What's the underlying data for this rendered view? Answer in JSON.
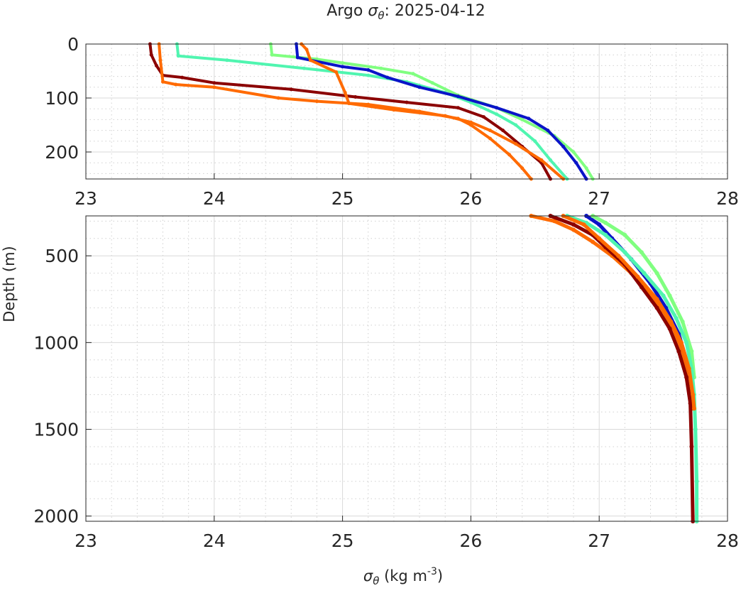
{
  "colors": {
    "dark_red": "#8b0000",
    "orange": "#ff6a00",
    "light_green": "#80ff80",
    "aqua_green": "#50f5b0",
    "blue": "#0a14c8",
    "axis": "#262626"
  },
  "chart_data": [
    {
      "type": "line",
      "title_prefix": "Argo",
      "title_symbol": "σ",
      "title_subscript": "θ",
      "title_suffix": ": 2025-04-12",
      "xlim": [
        23,
        28
      ],
      "ylim": [
        0,
        250
      ],
      "y_reversed": true,
      "grid": true,
      "minor_grid": true,
      "x_ticks": [
        "23",
        "24",
        "25",
        "26",
        "27",
        "28"
      ],
      "y_ticks": [
        "0",
        "100",
        "200"
      ],
      "x_tick_values": [
        23,
        24,
        25,
        26,
        27,
        28
      ],
      "y_tick_values": [
        0,
        100,
        200
      ],
      "series": [
        {
          "color_key": "dark_red",
          "points": [
            [
              23.5,
              0
            ],
            [
              23.51,
              20
            ],
            [
              23.55,
              40
            ],
            [
              23.6,
              58
            ],
            [
              23.75,
              62
            ],
            [
              24.0,
              72
            ],
            [
              24.6,
              84
            ],
            [
              25.1,
              98
            ],
            [
              25.5,
              108
            ],
            [
              25.9,
              118
            ],
            [
              26.1,
              135
            ],
            [
              26.25,
              160
            ],
            [
              26.4,
              190
            ],
            [
              26.55,
              220
            ],
            [
              26.62,
              250
            ]
          ]
        },
        {
          "color_key": "orange",
          "points": [
            [
              23.57,
              0
            ],
            [
              23.58,
              30
            ],
            [
              23.6,
              70
            ],
            [
              23.7,
              75
            ],
            [
              24.0,
              80
            ],
            [
              24.5,
              100
            ],
            [
              24.8,
              106
            ],
            [
              25.2,
              112
            ],
            [
              25.6,
              125
            ],
            [
              25.9,
              138
            ],
            [
              26.0,
              150
            ],
            [
              26.15,
              175
            ],
            [
              26.3,
              205
            ],
            [
              26.4,
              230
            ],
            [
              26.47,
              250
            ]
          ]
        },
        {
          "color_key": "light_green",
          "points": [
            [
              24.44,
              0
            ],
            [
              24.45,
              20
            ],
            [
              24.8,
              28
            ],
            [
              25.0,
              35
            ],
            [
              25.3,
              45
            ],
            [
              25.55,
              55
            ],
            [
              25.7,
              72
            ],
            [
              25.9,
              95
            ],
            [
              26.2,
              118
            ],
            [
              26.4,
              140
            ],
            [
              26.65,
              170
            ],
            [
              26.8,
              200
            ],
            [
              26.9,
              230
            ],
            [
              26.95,
              250
            ]
          ]
        },
        {
          "color_key": "aqua_green",
          "points": [
            [
              23.71,
              0
            ],
            [
              23.72,
              22
            ],
            [
              24.1,
              30
            ],
            [
              24.7,
              45
            ],
            [
              25.2,
              58
            ],
            [
              25.5,
              70
            ],
            [
              25.8,
              90
            ],
            [
              26.0,
              108
            ],
            [
              26.2,
              130
            ],
            [
              26.35,
              150
            ],
            [
              26.5,
              180
            ],
            [
              26.62,
              215
            ],
            [
              26.75,
              250
            ]
          ]
        },
        {
          "color_key": "blue",
          "points": [
            [
              24.64,
              0
            ],
            [
              24.65,
              25
            ],
            [
              25.0,
              42
            ],
            [
              25.2,
              48
            ],
            [
              25.35,
              62
            ],
            [
              25.6,
              80
            ],
            [
              25.9,
              97
            ],
            [
              26.2,
              118
            ],
            [
              26.45,
              138
            ],
            [
              26.6,
              160
            ],
            [
              26.72,
              190
            ],
            [
              26.82,
              220
            ],
            [
              26.9,
              250
            ]
          ]
        },
        {
          "color_key": "orange",
          "points": [
            [
              24.68,
              0
            ],
            [
              24.72,
              10
            ],
            [
              24.75,
              30
            ],
            [
              24.95,
              52
            ],
            [
              25.02,
              90
            ],
            [
              25.05,
              110
            ],
            [
              25.4,
              122
            ],
            [
              25.8,
              133
            ],
            [
              26.0,
              145
            ],
            [
              26.15,
              160
            ],
            [
              26.35,
              185
            ],
            [
              26.55,
              215
            ],
            [
              26.72,
              250
            ]
          ]
        }
      ]
    },
    {
      "type": "line",
      "xlim": [
        23,
        28
      ],
      "ylim": [
        270,
        2030
      ],
      "y_reversed": true,
      "grid": true,
      "minor_grid": true,
      "xlabel_symbol": "σ",
      "xlabel_subscript": "θ",
      "xlabel_units": " (kg m",
      "xlabel_exponent": "-3",
      "xlabel_close": ")",
      "ylabel": "Depth (m)",
      "x_ticks": [
        "23",
        "24",
        "25",
        "26",
        "27",
        "28"
      ],
      "y_ticks": [
        "500",
        "1000",
        "1500",
        "2000"
      ],
      "x_tick_values": [
        23,
        24,
        25,
        26,
        27,
        28
      ],
      "y_tick_values": [
        500,
        1000,
        1500,
        2000
      ],
      "series": [
        {
          "color_key": "orange",
          "points": [
            [
              26.47,
              270
            ],
            [
              26.65,
              300
            ],
            [
              26.8,
              350
            ],
            [
              26.95,
              420
            ],
            [
              27.1,
              500
            ],
            [
              27.25,
              600
            ],
            [
              27.4,
              720
            ],
            [
              27.5,
              820
            ],
            [
              27.58,
              920
            ],
            [
              27.65,
              1050
            ],
            [
              27.7,
              1200
            ],
            [
              27.72,
              1330
            ],
            [
              27.73,
              1380
            ]
          ]
        },
        {
          "color_key": "dark_red",
          "points": [
            [
              26.62,
              270
            ],
            [
              26.8,
              320
            ],
            [
              26.95,
              380
            ],
            [
              27.05,
              450
            ],
            [
              27.2,
              550
            ],
            [
              27.33,
              680
            ],
            [
              27.45,
              800
            ],
            [
              27.55,
              920
            ],
            [
              27.62,
              1050
            ],
            [
              27.68,
              1200
            ],
            [
              27.71,
              1350
            ],
            [
              27.72,
              1600
            ],
            [
              27.73,
              2030
            ]
          ]
        },
        {
          "color_key": "blue",
          "points": [
            [
              26.9,
              270
            ],
            [
              27.0,
              320
            ],
            [
              27.1,
              400
            ],
            [
              27.25,
              520
            ],
            [
              27.4,
              660
            ],
            [
              27.52,
              800
            ],
            [
              27.62,
              950
            ],
            [
              27.7,
              1150
            ],
            [
              27.73,
              1300
            ]
          ]
        },
        {
          "color_key": "light_green",
          "points": [
            [
              26.95,
              270
            ],
            [
              27.05,
              310
            ],
            [
              27.2,
              380
            ],
            [
              27.33,
              480
            ],
            [
              27.45,
              600
            ],
            [
              27.55,
              730
            ],
            [
              27.65,
              880
            ],
            [
              27.72,
              1050
            ],
            [
              27.74,
              1200
            ]
          ]
        },
        {
          "color_key": "aqua_green",
          "points": [
            [
              26.75,
              270
            ],
            [
              26.9,
              310
            ],
            [
              27.05,
              380
            ],
            [
              27.2,
              480
            ],
            [
              27.35,
              600
            ],
            [
              27.5,
              730
            ],
            [
              27.6,
              860
            ],
            [
              27.68,
              1000
            ],
            [
              27.72,
              1150
            ],
            [
              27.74,
              1300
            ],
            [
              27.75,
              1500
            ],
            [
              27.76,
              1800
            ],
            [
              27.76,
              2030
            ]
          ]
        },
        {
          "color_key": "orange",
          "points": [
            [
              26.72,
              270
            ],
            [
              26.88,
              320
            ],
            [
              27.0,
              400
            ],
            [
              27.15,
              500
            ],
            [
              27.3,
              620
            ],
            [
              27.45,
              750
            ],
            [
              27.56,
              880
            ],
            [
              27.64,
              1000
            ],
            [
              27.7,
              1150
            ],
            [
              27.73,
              1300
            ],
            [
              27.74,
              1380
            ]
          ]
        }
      ]
    }
  ]
}
